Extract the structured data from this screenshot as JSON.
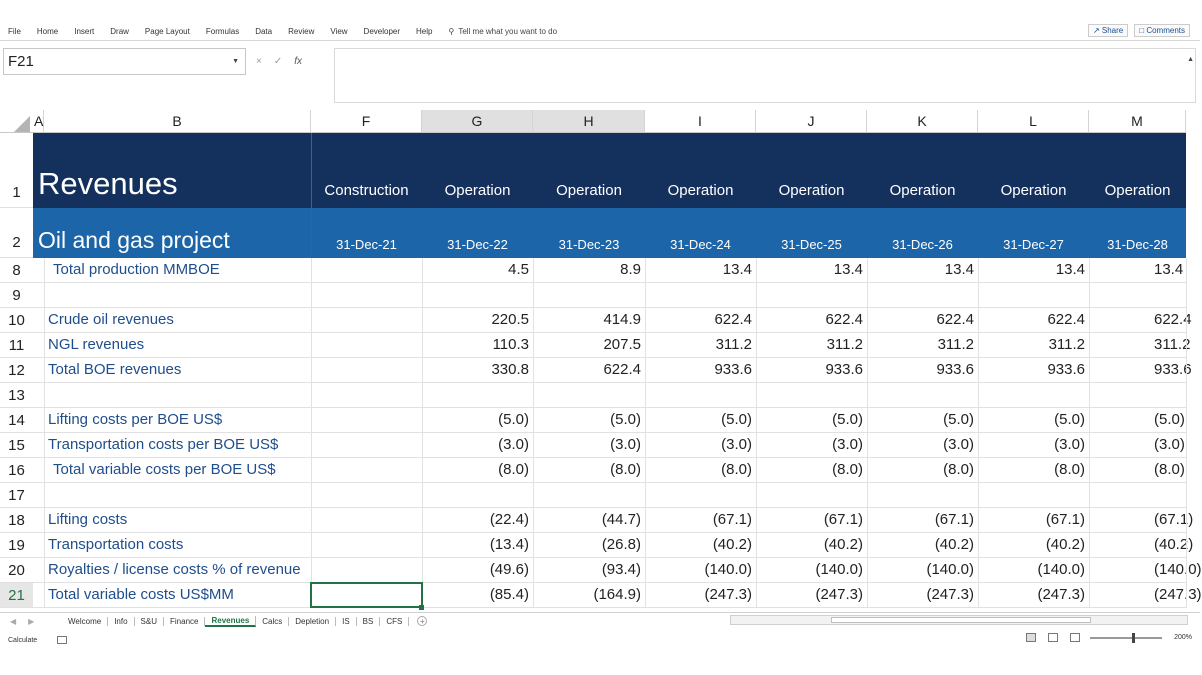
{
  "ribbon": {
    "tabs": [
      "File",
      "Home",
      "Insert",
      "Draw",
      "Page Layout",
      "Formulas",
      "Data",
      "Review",
      "View",
      "Developer",
      "Help"
    ],
    "tell_me": "Tell me what you want to do",
    "share": "Share",
    "comments": "Comments"
  },
  "formula_bar": {
    "name_box": "F21",
    "fx": "fx",
    "cancel": "×",
    "enter": "✓",
    "value": ""
  },
  "columns": [
    "A",
    "B",
    "F",
    "G",
    "H",
    "I",
    "J",
    "K",
    "L",
    "M"
  ],
  "selected_columns": [
    "G",
    "H"
  ],
  "header": {
    "title": "Revenues",
    "subtitle": "Oil and gas project",
    "phases": [
      "Construction",
      "Operation",
      "Operation",
      "Operation",
      "Operation",
      "Operation",
      "Operation",
      "Operation"
    ],
    "dates": [
      "31-Dec-21",
      "31-Dec-22",
      "31-Dec-23",
      "31-Dec-24",
      "31-Dec-25",
      "31-Dec-26",
      "31-Dec-27",
      "31-Dec-28"
    ]
  },
  "rows": [
    {
      "num": "8",
      "label": "Total production MMBOE",
      "indent": true,
      "values": [
        "",
        "4.5",
        "8.9",
        "13.4",
        "13.4",
        "13.4",
        "13.4",
        "13.4"
      ]
    },
    {
      "num": "9",
      "label": "",
      "indent": false,
      "values": [
        "",
        "",
        "",
        "",
        "",
        "",
        "",
        ""
      ]
    },
    {
      "num": "10",
      "label": "Crude oil revenues",
      "indent": false,
      "values": [
        "",
        "220.5",
        "414.9",
        "622.4",
        "622.4",
        "622.4",
        "622.4",
        "622.4"
      ]
    },
    {
      "num": "11",
      "label": "NGL revenues",
      "indent": false,
      "values": [
        "",
        "110.3",
        "207.5",
        "311.2",
        "311.2",
        "311.2",
        "311.2",
        "311.2"
      ]
    },
    {
      "num": "12",
      "label": "Total BOE revenues",
      "indent": false,
      "values": [
        "",
        "330.8",
        "622.4",
        "933.6",
        "933.6",
        "933.6",
        "933.6",
        "933.6"
      ]
    },
    {
      "num": "13",
      "label": "",
      "indent": false,
      "values": [
        "",
        "",
        "",
        "",
        "",
        "",
        "",
        ""
      ]
    },
    {
      "num": "14",
      "label": "Lifting costs per BOE US$",
      "indent": false,
      "values": [
        "",
        "(5.0)",
        "(5.0)",
        "(5.0)",
        "(5.0)",
        "(5.0)",
        "(5.0)",
        "(5.0)"
      ]
    },
    {
      "num": "15",
      "label": "Transportation costs per BOE US$",
      "indent": false,
      "values": [
        "",
        "(3.0)",
        "(3.0)",
        "(3.0)",
        "(3.0)",
        "(3.0)",
        "(3.0)",
        "(3.0)"
      ]
    },
    {
      "num": "16",
      "label": "Total variable costs per BOE US$",
      "indent": true,
      "values": [
        "",
        "(8.0)",
        "(8.0)",
        "(8.0)",
        "(8.0)",
        "(8.0)",
        "(8.0)",
        "(8.0)"
      ]
    },
    {
      "num": "17",
      "label": "",
      "indent": false,
      "values": [
        "",
        "",
        "",
        "",
        "",
        "",
        "",
        ""
      ]
    },
    {
      "num": "18",
      "label": "Lifting costs",
      "indent": false,
      "values": [
        "",
        "(22.4)",
        "(44.7)",
        "(67.1)",
        "(67.1)",
        "(67.1)",
        "(67.1)",
        "(67.1)"
      ]
    },
    {
      "num": "19",
      "label": "Transportation costs",
      "indent": false,
      "values": [
        "",
        "(13.4)",
        "(26.8)",
        "(40.2)",
        "(40.2)",
        "(40.2)",
        "(40.2)",
        "(40.2)"
      ]
    },
    {
      "num": "20",
      "label": "Royalties / license costs % of revenue",
      "indent": false,
      "values": [
        "",
        "(49.6)",
        "(93.4)",
        "(140.0)",
        "(140.0)",
        "(140.0)",
        "(140.0)",
        "(140.0)"
      ]
    },
    {
      "num": "21",
      "label": "Total variable costs US$MM",
      "indent": false,
      "values": [
        "",
        "(85.4)",
        "(164.9)",
        "(247.3)",
        "(247.3)",
        "(247.3)",
        "(247.3)",
        "(247.3)"
      ]
    }
  ],
  "sheet_tabs": [
    "Welcome",
    "Info",
    "S&U",
    "Finance",
    "Revenues",
    "Calcs",
    "Depletion",
    "IS",
    "BS",
    "CFS"
  ],
  "active_sheet": "Revenues",
  "status": {
    "mode": "Calculate",
    "zoom": "200%"
  },
  "colors": {
    "title_band": "#14305d",
    "subtitle_band": "#1c65a8",
    "label_text": "#1f4e8c",
    "selection": "#217346"
  },
  "icons": {
    "search": "lightbulb-icon",
    "share": "share-icon",
    "comments": "comment-icon"
  }
}
